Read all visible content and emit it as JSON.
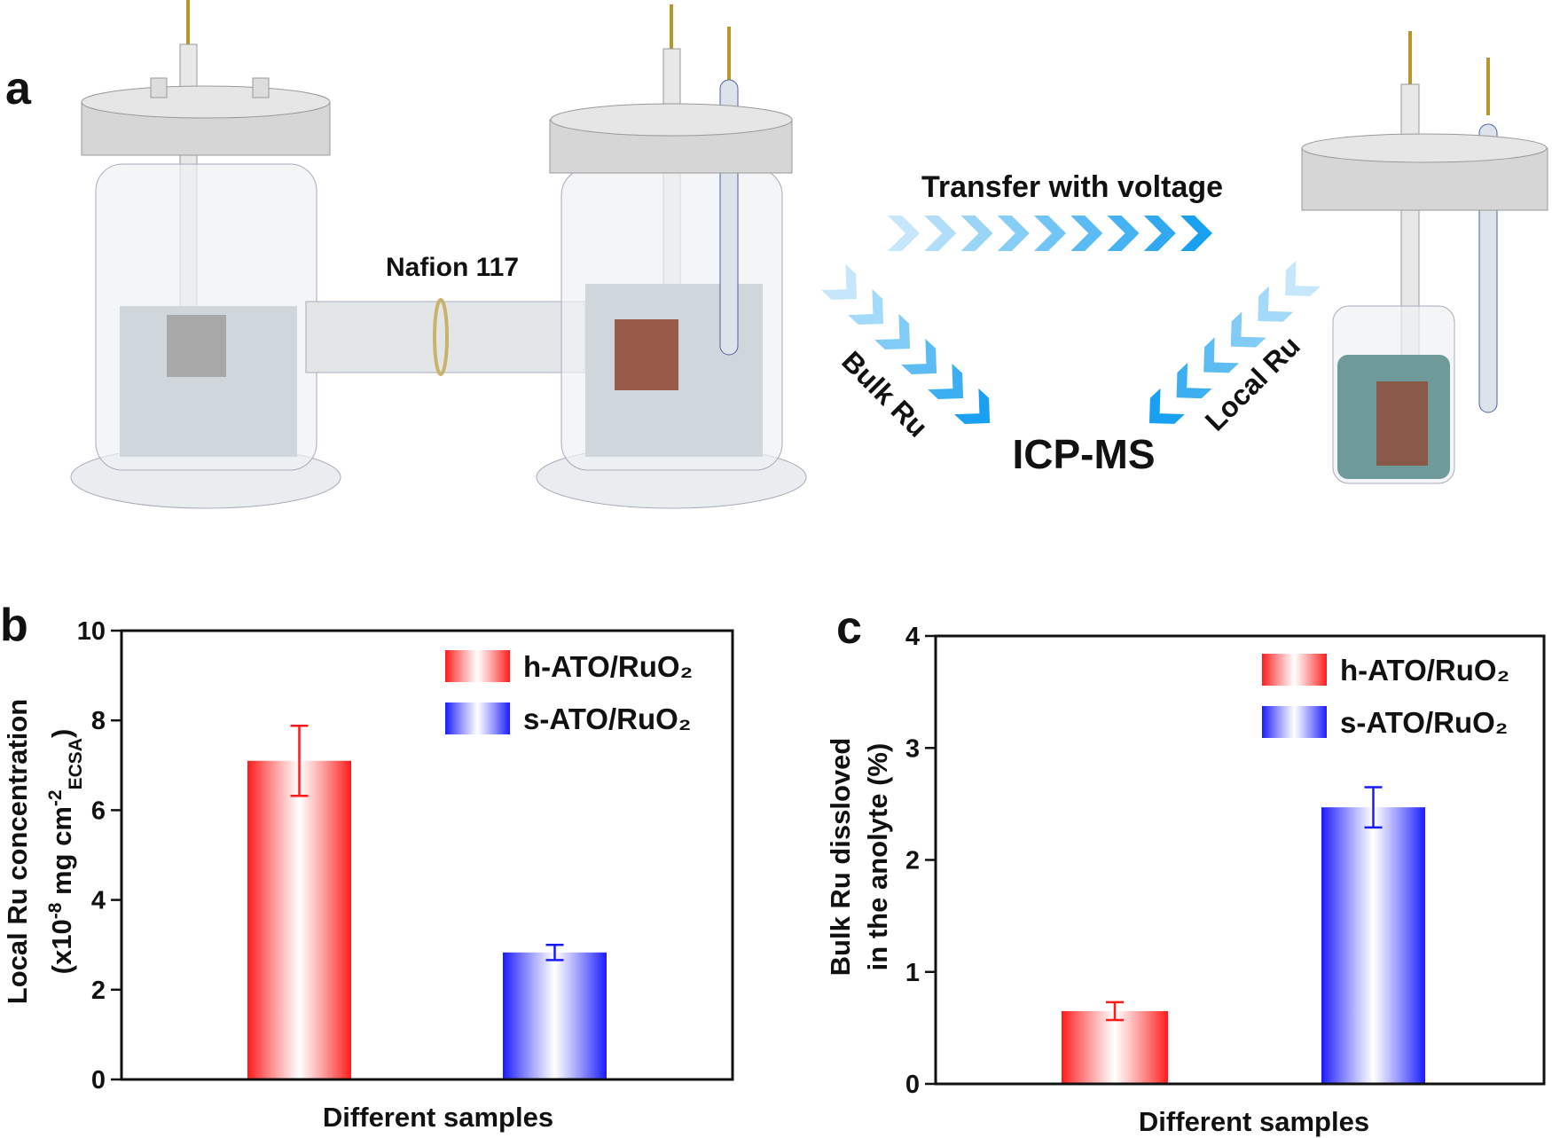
{
  "diagram": {
    "panel": "a",
    "membrane": "Nafion 117",
    "transfer": "Transfer with voltage",
    "bulk": "Bulk Ru",
    "local": "Local Ru",
    "analysis": "ICP-MS"
  },
  "chart_data": [
    {
      "type": "bar",
      "panel": "b",
      "categories": [
        null
      ],
      "xlabel": "Different samples",
      "ylabel": [
        [
          "Local Ru concentration"
        ],
        [
          "(x10",
          "-8",
          " mg cm",
          "-2",
          "ECSA",
          ")"
        ]
      ],
      "ylim": [
        0,
        10
      ],
      "yticks": [
        0,
        2,
        4,
        6,
        8,
        10
      ],
      "series": [
        {
          "name": "h-ATO/RuO₂",
          "color": "#ff1a1a",
          "values": [
            7.1
          ],
          "errors": [
            0.78
          ]
        },
        {
          "name": "s-ATO/RuO₂",
          "color": "#1a1aff",
          "values": [
            2.83
          ],
          "errors": [
            0.17
          ]
        }
      ]
    },
    {
      "type": "bar",
      "panel": "c",
      "categories": [
        null
      ],
      "xlabel": "Different samples",
      "ylabel": [
        [
          "Bulk Ru dissloved"
        ],
        [
          "in the anolyte (%)"
        ]
      ],
      "ylim": [
        0,
        4
      ],
      "yticks": [
        0,
        1,
        2,
        3,
        4
      ],
      "series": [
        {
          "name": "h-ATO/RuO₂",
          "color": "#ff1a1a",
          "values": [
            0.65
          ],
          "errors": [
            0.08
          ]
        },
        {
          "name": "s-ATO/RuO₂",
          "color": "#1a1aff",
          "values": [
            2.47
          ],
          "errors": [
            0.18
          ]
        }
      ]
    }
  ]
}
